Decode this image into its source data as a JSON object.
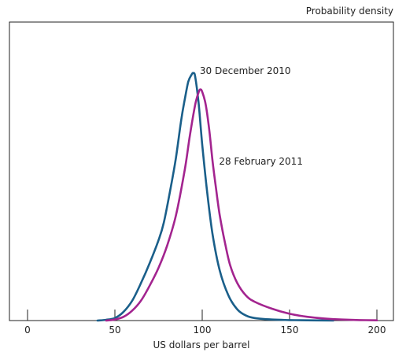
{
  "chart_data": {
    "type": "line",
    "xlabel": "US dollars per barrel",
    "ylabel": "Probability density",
    "xlim": [
      0,
      200
    ],
    "ylim": [
      0,
      1
    ],
    "xticks": [
      0,
      50,
      100,
      150,
      200
    ],
    "grid": false,
    "legend": "none",
    "series": [
      {
        "name": "30 December 2010",
        "color": "#1a5f8a",
        "x": [
          40,
          45,
          50,
          55,
          60,
          65,
          70,
          75,
          78,
          82,
          85,
          88,
          90,
          92,
          94,
          95,
          96,
          98,
          100,
          103,
          106,
          110,
          115,
          120,
          125,
          130,
          140,
          150,
          160,
          175
        ],
        "y": [
          0,
          0.003,
          0.01,
          0.035,
          0.08,
          0.15,
          0.23,
          0.32,
          0.39,
          0.53,
          0.65,
          0.8,
          0.88,
          0.95,
          0.98,
          0.985,
          0.97,
          0.86,
          0.7,
          0.5,
          0.34,
          0.2,
          0.1,
          0.045,
          0.02,
          0.01,
          0.004,
          0.002,
          0.001,
          0
        ]
      },
      {
        "name": "28 February 2011",
        "color": "#a3248f",
        "x": [
          45,
          50,
          55,
          60,
          65,
          70,
          75,
          80,
          85,
          90,
          93,
          96,
          98,
          99,
          100,
          102,
          104,
          106,
          108,
          110,
          113,
          116,
          120,
          125,
          130,
          140,
          150,
          160,
          170,
          180,
          190,
          200
        ],
        "y": [
          0,
          0.004,
          0.015,
          0.04,
          0.08,
          0.14,
          0.21,
          0.3,
          0.42,
          0.6,
          0.74,
          0.86,
          0.91,
          0.92,
          0.91,
          0.86,
          0.76,
          0.63,
          0.52,
          0.42,
          0.31,
          0.22,
          0.15,
          0.1,
          0.075,
          0.047,
          0.027,
          0.015,
          0.008,
          0.004,
          0.002,
          0.001
        ]
      }
    ],
    "annotations": [
      {
        "series": 0,
        "text": "30 December 2010",
        "at_x": 95
      },
      {
        "series": 1,
        "text": "28 February 2011",
        "at_x": 106
      }
    ]
  }
}
